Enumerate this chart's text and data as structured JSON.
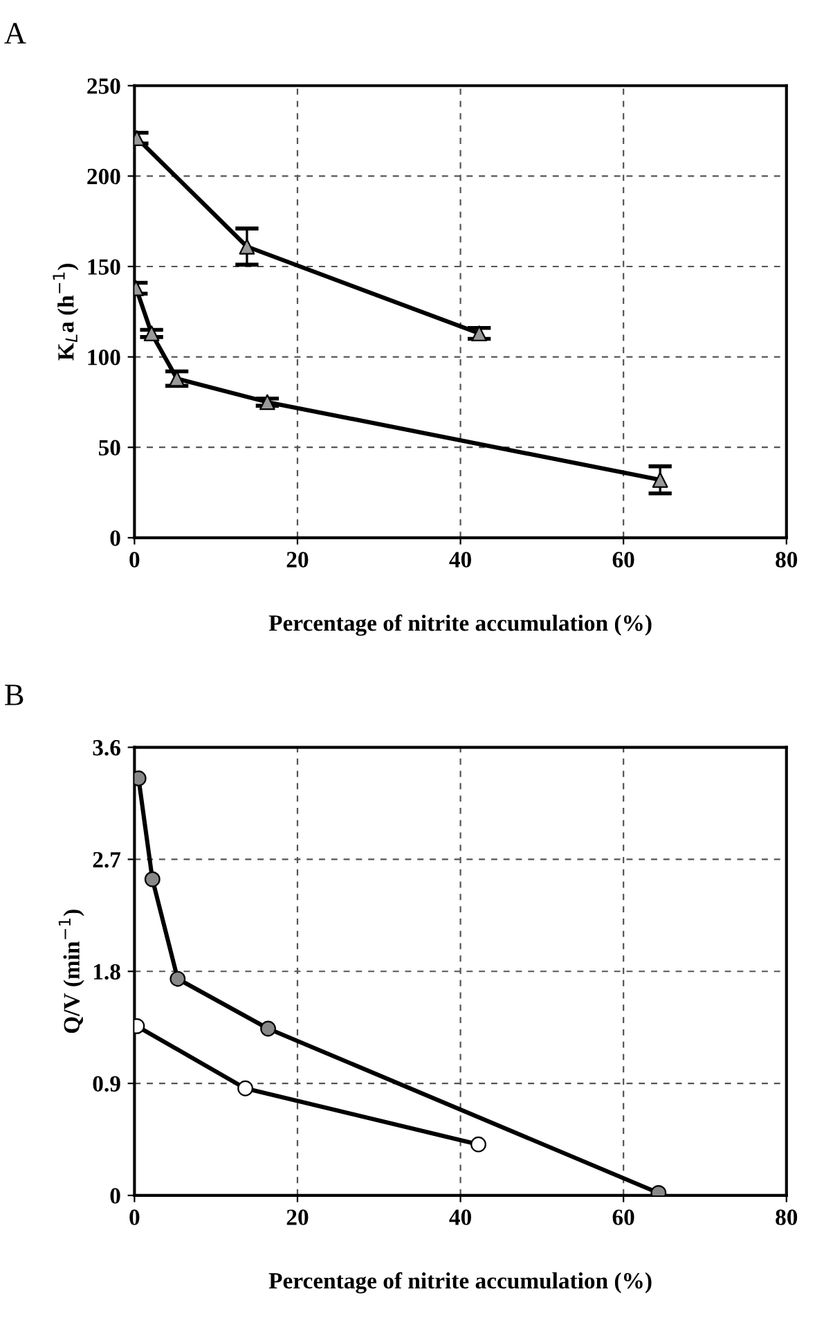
{
  "chart_data": [
    {
      "type": "line",
      "title": "A",
      "xlabel": "Percentage of nitrite accumulation (%)",
      "ylabel": "K$_{L}$a (h$^{−1}$)",
      "xlim": [
        0,
        80
      ],
      "xticks": [
        0,
        20,
        40,
        60,
        80
      ],
      "ylim": [
        0,
        250
      ],
      "yticks": [
        0,
        50,
        100,
        150,
        200,
        250
      ],
      "grid": true,
      "marker": "triangle",
      "line_style": "solid",
      "series": [
        {
          "color": "#000000",
          "colors": [
            "#999999",
            "#999999",
            "#999999"
          ],
          "x": [
            0.3,
            13.8,
            42.3
          ],
          "values": [
            221,
            161,
            113
          ],
          "errors": [
            3,
            10,
            3
          ]
        },
        {
          "color": "#000000",
          "colors": [
            "#999999",
            "#999999",
            "#999999",
            "#999999",
            "#999999"
          ],
          "x": [
            0.2,
            2.1,
            5.2,
            16.3,
            64.5
          ],
          "values": [
            138,
            113,
            88,
            75,
            32
          ],
          "errors": [
            3,
            2,
            4,
            2,
            7.5
          ]
        }
      ]
    },
    {
      "type": "line",
      "title": "B",
      "xlabel": "Percentage of nitrite accumulation (%)",
      "ylabel": "Q/V (min$^{−1}$)",
      "xlim": [
        0,
        80
      ],
      "xticks": [
        0,
        20,
        40,
        60,
        80
      ],
      "ylim": [
        0,
        3.6
      ],
      "yticks": [
        0,
        0.9,
        1.8,
        2.7,
        3.6
      ],
      "grid": true,
      "marker": "circle",
      "line_style": "solid",
      "series": [
        {
          "color": "#000000",
          "colors": [
            "#888888",
            "#888888",
            "#888888",
            "#888888",
            "#888888"
          ],
          "x": [
            0.5,
            2.2,
            5.3,
            16.4,
            64.3
          ],
          "values": [
            3.35,
            2.54,
            1.74,
            1.34,
            0.02
          ]
        },
        {
          "color": "#000000",
          "colors": [
            "#ffffff",
            "#ffffff",
            "#ffffff"
          ],
          "x": [
            0.3,
            13.6,
            42.2
          ],
          "values": [
            1.36,
            0.86,
            0.41
          ]
        }
      ]
    }
  ]
}
